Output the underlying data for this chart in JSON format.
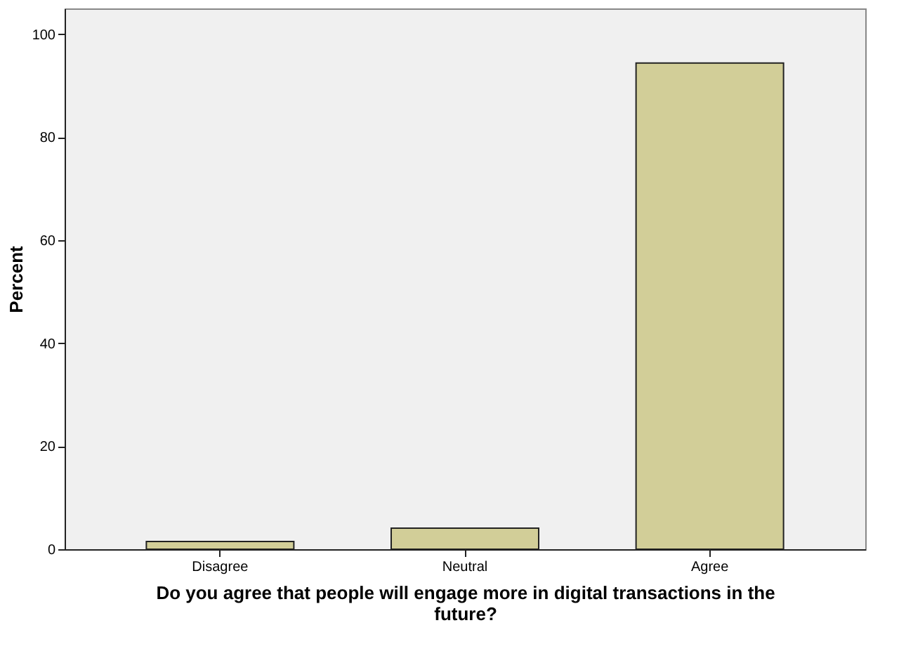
{
  "chart_data": {
    "type": "bar",
    "categories": [
      "Disagree",
      "Neutral",
      "Agree"
    ],
    "values": [
      1.5,
      4.1,
      94.4
    ],
    "color": "#d2ce98",
    "xlabel": "Do you agree that people will engage more in digital transactions in the future?",
    "ylabel": "Percent",
    "ylim": [
      0,
      105
    ],
    "yticks": [
      0,
      20,
      40,
      60,
      80,
      100
    ],
    "grid": false
  }
}
